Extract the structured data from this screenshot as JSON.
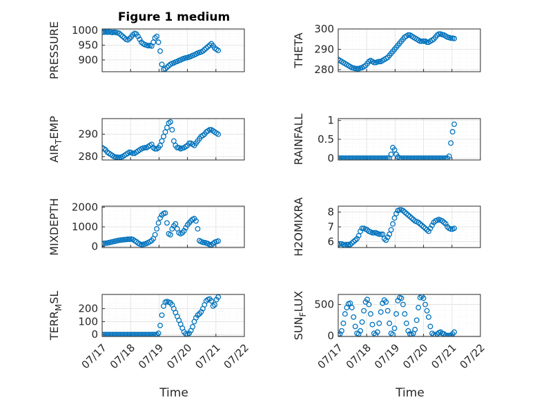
{
  "figure_title": "Figure 1 medium",
  "x_axis": {
    "label": "Time",
    "ticks": [
      "07/17",
      "07/18",
      "07/19",
      "07/20",
      "07/21",
      "07/22"
    ],
    "range": [
      "07/17",
      "07/22"
    ]
  },
  "colors": {
    "marker": "#0072BD",
    "axis": "#262626",
    "grid": "#dfdfdf"
  },
  "chart_data": [
    {
      "type": "scatter",
      "ylabel": "PRESSURE",
      "ylabel_sub": "",
      "ylabel_rest": "",
      "ylim": [
        860,
        1005
      ],
      "yticks": [
        900,
        950,
        1000
      ],
      "show_xticks": false,
      "x": [
        0.0,
        0.06,
        0.12,
        0.18,
        0.24,
        0.3,
        0.36,
        0.42,
        0.48,
        0.54,
        0.6,
        0.66,
        0.72,
        0.78,
        0.84,
        0.9,
        0.96,
        1.02,
        1.08,
        1.14,
        1.2,
        1.26,
        1.32,
        1.38,
        1.44,
        1.5,
        1.56,
        1.62,
        1.68,
        1.74,
        1.8,
        1.86,
        1.92,
        1.98,
        2.04,
        2.1,
        2.16,
        2.22,
        2.28,
        2.34,
        2.4,
        2.46,
        2.52,
        2.58,
        2.64,
        2.7,
        2.76,
        2.82,
        2.88,
        2.94,
        3.0,
        3.06,
        3.12,
        3.18,
        3.24,
        3.3,
        3.36,
        3.42,
        3.48,
        3.54,
        3.6,
        3.66,
        3.72,
        3.78,
        3.84,
        3.9,
        3.96,
        4.02,
        4.08
      ],
      "y": [
        995,
        994,
        995,
        994,
        995,
        994,
        993,
        994,
        993,
        992,
        990,
        985,
        980,
        975,
        970,
        968,
        972,
        978,
        985,
        990,
        988,
        980,
        970,
        960,
        955,
        952,
        950,
        948,
        949,
        947,
        960,
        975,
        980,
        960,
        930,
        885,
        868,
        870,
        875,
        880,
        885,
        888,
        890,
        893,
        895,
        898,
        900,
        903,
        905,
        907,
        908,
        910,
        912,
        915,
        917,
        920,
        923,
        925,
        927,
        930,
        935,
        940,
        945,
        950,
        955,
        948,
        940,
        936,
        932
      ]
    },
    {
      "type": "scatter",
      "ylabel": "THETA",
      "ylabel_sub": "",
      "ylabel_rest": "",
      "ylim": [
        279,
        300
      ],
      "yticks": [
        280,
        290,
        300
      ],
      "show_xticks": false,
      "x": [
        0.0,
        0.06,
        0.12,
        0.18,
        0.24,
        0.3,
        0.36,
        0.42,
        0.48,
        0.54,
        0.6,
        0.66,
        0.72,
        0.78,
        0.84,
        0.9,
        0.96,
        1.02,
        1.08,
        1.14,
        1.2,
        1.26,
        1.32,
        1.38,
        1.44,
        1.5,
        1.56,
        1.62,
        1.68,
        1.74,
        1.8,
        1.86,
        1.92,
        1.98,
        2.04,
        2.1,
        2.16,
        2.22,
        2.28,
        2.34,
        2.4,
        2.46,
        2.52,
        2.58,
        2.64,
        2.7,
        2.76,
        2.82,
        2.88,
        2.94,
        3.0,
        3.06,
        3.12,
        3.18,
        3.24,
        3.3,
        3.36,
        3.42,
        3.48,
        3.54,
        3.6,
        3.66,
        3.72,
        3.78,
        3.84,
        3.9,
        3.96,
        4.02,
        4.08
      ],
      "y": [
        285,
        284.5,
        284,
        283.5,
        283,
        282.5,
        282,
        281.5,
        281,
        280.8,
        280.6,
        280.5,
        280.5,
        280.8,
        281,
        281.5,
        282,
        283,
        284,
        284.5,
        284,
        283.5,
        283.5,
        283.8,
        284,
        284,
        284.5,
        285,
        285.5,
        286,
        287,
        288,
        289,
        290,
        291,
        292,
        293,
        294,
        295,
        296,
        296.5,
        297,
        297,
        296.5,
        296,
        295.5,
        295,
        294.5,
        294,
        294,
        294,
        294,
        293.5,
        293.5,
        294,
        294.5,
        295,
        296,
        297,
        297.5,
        297.5,
        297.2,
        297,
        296.5,
        296,
        295.8,
        295.5,
        295.5,
        295.3
      ]
    },
    {
      "type": "scatter",
      "ylabel": "AIR",
      "ylabel_sub": "T",
      "ylabel_rest": "EMP",
      "ylim": [
        278.5,
        297
      ],
      "yticks": [
        280,
        290
      ],
      "show_xticks": false,
      "x": [
        0.0,
        0.06,
        0.12,
        0.18,
        0.24,
        0.3,
        0.36,
        0.42,
        0.48,
        0.54,
        0.6,
        0.66,
        0.72,
        0.78,
        0.84,
        0.9,
        0.96,
        1.02,
        1.08,
        1.14,
        1.2,
        1.26,
        1.32,
        1.38,
        1.44,
        1.5,
        1.56,
        1.62,
        1.68,
        1.74,
        1.8,
        1.86,
        1.92,
        1.98,
        2.04,
        2.1,
        2.16,
        2.22,
        2.28,
        2.34,
        2.4,
        2.46,
        2.52,
        2.58,
        2.64,
        2.7,
        2.76,
        2.82,
        2.88,
        2.94,
        3.0,
        3.06,
        3.12,
        3.18,
        3.24,
        3.3,
        3.36,
        3.42,
        3.48,
        3.54,
        3.6,
        3.66,
        3.72,
        3.78,
        3.84,
        3.9,
        3.96,
        4.02,
        4.08
      ],
      "y": [
        284,
        283.5,
        283,
        282,
        281.5,
        281,
        280.5,
        280,
        279.8,
        279.7,
        279.6,
        279.8,
        280,
        280.5,
        281,
        281.5,
        282,
        281.8,
        281.5,
        281.5,
        282,
        282.5,
        283,
        283.5,
        283.8,
        284,
        284,
        284.5,
        285,
        285.5,
        284,
        283.5,
        283.5,
        284,
        285,
        287,
        289,
        291,
        293,
        295,
        295.5,
        292,
        287,
        285,
        284,
        284,
        283.5,
        283.8,
        284,
        284.5,
        285,
        286,
        286,
        285.5,
        285,
        286,
        287,
        288,
        289,
        289.5,
        290,
        291,
        291.5,
        292,
        292,
        291.5,
        291,
        290.5,
        290
      ]
    },
    {
      "type": "scatter",
      "ylabel": "RAINFALL",
      "ylabel_sub": "",
      "ylabel_rest": "",
      "ylim": [
        -0.05,
        1.05
      ],
      "yticks": [
        0,
        0.5,
        1
      ],
      "ytick_labels": [
        "0",
        "0.5",
        "1"
      ],
      "show_xticks": false,
      "x": [
        0.0,
        0.06,
        0.12,
        0.18,
        0.24,
        0.3,
        0.36,
        0.42,
        0.48,
        0.54,
        0.6,
        0.66,
        0.72,
        0.78,
        0.84,
        0.9,
        0.96,
        1.02,
        1.08,
        1.14,
        1.2,
        1.26,
        1.32,
        1.38,
        1.44,
        1.5,
        1.56,
        1.62,
        1.68,
        1.74,
        1.8,
        1.86,
        1.92,
        1.98,
        2.04,
        2.1,
        2.16,
        2.22,
        2.28,
        2.34,
        2.4,
        2.46,
        2.52,
        2.58,
        2.64,
        2.7,
        2.76,
        2.82,
        2.88,
        2.94,
        3.0,
        3.06,
        3.12,
        3.18,
        3.24,
        3.3,
        3.36,
        3.42,
        3.48,
        3.54,
        3.6,
        3.66,
        3.72,
        3.78,
        3.84,
        3.9,
        3.96,
        4.02,
        4.08
      ],
      "y": [
        0,
        0,
        0,
        0,
        0,
        0,
        0,
        0,
        0,
        0,
        0,
        0,
        0,
        0,
        0,
        0,
        0,
        0,
        0,
        0,
        0,
        0,
        0,
        0,
        0,
        0,
        0,
        0,
        0,
        0,
        0,
        0.1,
        0.28,
        0.22,
        0.1,
        0.03,
        0,
        0,
        0,
        0,
        0,
        0,
        0,
        0,
        0,
        0,
        0,
        0,
        0,
        0,
        0,
        0,
        0,
        0,
        0,
        0,
        0,
        0,
        0,
        0,
        0,
        0,
        0,
        0,
        0,
        0.05,
        0.4,
        0.7,
        0.9
      ]
    },
    {
      "type": "scatter",
      "ylabel": "MIXDEPTH",
      "ylabel_sub": "",
      "ylabel_rest": "",
      "ylim": [
        -50,
        2050
      ],
      "yticks": [
        0,
        1000,
        2000
      ],
      "show_xticks": false,
      "x": [
        0.0,
        0.06,
        0.12,
        0.18,
        0.24,
        0.3,
        0.36,
        0.42,
        0.48,
        0.54,
        0.6,
        0.66,
        0.72,
        0.78,
        0.84,
        0.9,
        0.96,
        1.02,
        1.08,
        1.14,
        1.2,
        1.26,
        1.32,
        1.38,
        1.44,
        1.5,
        1.56,
        1.62,
        1.68,
        1.74,
        1.8,
        1.86,
        1.92,
        1.98,
        2.04,
        2.1,
        2.16,
        2.22,
        2.28,
        2.34,
        2.4,
        2.46,
        2.52,
        2.58,
        2.64,
        2.7,
        2.76,
        2.82,
        2.88,
        2.94,
        3.0,
        3.06,
        3.12,
        3.18,
        3.24,
        3.3,
        3.36,
        3.42,
        3.48,
        3.54,
        3.6,
        3.66,
        3.72,
        3.78,
        3.84,
        3.9,
        3.96,
        4.02,
        4.08
      ],
      "y": [
        150,
        160,
        170,
        180,
        200,
        220,
        240,
        260,
        280,
        300,
        320,
        330,
        340,
        350,
        360,
        370,
        370,
        380,
        360,
        300,
        250,
        180,
        130,
        100,
        110,
        130,
        160,
        200,
        250,
        300,
        400,
        600,
        900,
        1200,
        1450,
        1600,
        1680,
        1700,
        1200,
        650,
        600,
        900,
        1050,
        1150,
        900,
        700,
        650,
        700,
        800,
        950,
        1100,
        1200,
        1300,
        1380,
        1420,
        1300,
        900,
        300,
        250,
        220,
        200,
        180,
        150,
        100,
        80,
        150,
        220,
        250,
        280
      ]
    },
    {
      "type": "scatter",
      "ylabel": "H2OMIXRA",
      "ylabel_sub": "",
      "ylabel_rest": "",
      "ylim": [
        5.6,
        8.4
      ],
      "yticks": [
        6,
        7,
        8
      ],
      "show_xticks": false,
      "x": [
        0.0,
        0.06,
        0.12,
        0.18,
        0.24,
        0.3,
        0.36,
        0.42,
        0.48,
        0.54,
        0.6,
        0.66,
        0.72,
        0.78,
        0.84,
        0.9,
        0.96,
        1.02,
        1.08,
        1.14,
        1.2,
        1.26,
        1.32,
        1.38,
        1.44,
        1.5,
        1.56,
        1.62,
        1.68,
        1.74,
        1.8,
        1.86,
        1.92,
        1.98,
        2.04,
        2.1,
        2.16,
        2.22,
        2.28,
        2.34,
        2.4,
        2.46,
        2.52,
        2.58,
        2.64,
        2.7,
        2.76,
        2.82,
        2.88,
        2.94,
        3.0,
        3.06,
        3.12,
        3.18,
        3.24,
        3.3,
        3.36,
        3.42,
        3.48,
        3.54,
        3.6,
        3.66,
        3.72,
        3.78,
        3.84,
        3.9,
        3.96,
        4.02,
        4.08
      ],
      "y": [
        5.8,
        5.85,
        5.85,
        5.8,
        5.75,
        5.8,
        5.8,
        5.8,
        5.9,
        6.0,
        6.1,
        6.2,
        6.4,
        6.7,
        6.9,
        6.9,
        6.85,
        6.8,
        6.7,
        6.65,
        6.6,
        6.6,
        6.6,
        6.55,
        6.5,
        6.5,
        6.5,
        6.2,
        6.1,
        6.3,
        6.5,
        6.8,
        7.2,
        7.6,
        7.9,
        8.1,
        8.15,
        8.15,
        8.1,
        8.0,
        7.9,
        7.8,
        7.7,
        7.6,
        7.5,
        7.4,
        7.35,
        7.3,
        7.2,
        7.1,
        7.0,
        6.9,
        6.8,
        6.7,
        6.9,
        7.1,
        7.3,
        7.4,
        7.45,
        7.5,
        7.45,
        7.4,
        7.3,
        7.2,
        7.0,
        6.9,
        6.85,
        6.85,
        6.9
      ]
    },
    {
      "type": "scatter",
      "ylabel": "TERR",
      "ylabel_sub": "M",
      "ylabel_rest": "SL",
      "ylim": [
        -15,
        310
      ],
      "yticks": [
        0,
        100,
        200
      ],
      "show_xticks": true,
      "x": [
        0.0,
        0.06,
        0.12,
        0.18,
        0.24,
        0.3,
        0.36,
        0.42,
        0.48,
        0.54,
        0.6,
        0.66,
        0.72,
        0.78,
        0.84,
        0.9,
        0.96,
        1.02,
        1.08,
        1.14,
        1.2,
        1.26,
        1.32,
        1.38,
        1.44,
        1.5,
        1.56,
        1.62,
        1.68,
        1.74,
        1.8,
        1.86,
        1.92,
        1.98,
        2.04,
        2.1,
        2.16,
        2.22,
        2.28,
        2.34,
        2.4,
        2.46,
        2.52,
        2.58,
        2.64,
        2.7,
        2.76,
        2.82,
        2.88,
        2.94,
        3.0,
        3.06,
        3.12,
        3.18,
        3.24,
        3.3,
        3.36,
        3.42,
        3.48,
        3.54,
        3.6,
        3.66,
        3.72,
        3.78,
        3.84,
        3.9,
        3.96,
        4.02,
        4.08
      ],
      "y": [
        0,
        0,
        0,
        0,
        0,
        0,
        0,
        0,
        0,
        0,
        0,
        0,
        0,
        0,
        0,
        0,
        0,
        0,
        0,
        0,
        0,
        0,
        0,
        0,
        0,
        0,
        0,
        0,
        0,
        0,
        0,
        0,
        0,
        10,
        70,
        150,
        220,
        250,
        255,
        250,
        245,
        230,
        200,
        170,
        140,
        110,
        80,
        50,
        20,
        5,
        0,
        10,
        30,
        60,
        100,
        130,
        150,
        160,
        175,
        200,
        230,
        260,
        270,
        275,
        260,
        220,
        230,
        270,
        290
      ]
    },
    {
      "type": "scatter",
      "ylabel": "SUN",
      "ylabel_sub": "F",
      "ylabel_rest": "LUX",
      "ylim": [
        -10,
        660
      ],
      "yticks": [
        0,
        500
      ],
      "show_xticks": true,
      "x": [
        0.0,
        0.06,
        0.12,
        0.18,
        0.24,
        0.3,
        0.36,
        0.42,
        0.48,
        0.54,
        0.6,
        0.66,
        0.72,
        0.78,
        0.84,
        0.9,
        0.96,
        1.02,
        1.08,
        1.14,
        1.2,
        1.26,
        1.32,
        1.38,
        1.44,
        1.5,
        1.56,
        1.62,
        1.68,
        1.74,
        1.8,
        1.86,
        1.92,
        1.98,
        2.04,
        2.1,
        2.16,
        2.22,
        2.28,
        2.34,
        2.4,
        2.46,
        2.52,
        2.58,
        2.64,
        2.7,
        2.76,
        2.82,
        2.88,
        2.94,
        3.0,
        3.06,
        3.12,
        3.18,
        3.24,
        3.3,
        3.36,
        3.42,
        3.48,
        3.54,
        3.6,
        3.66,
        3.72,
        3.78,
        3.84,
        3.9,
        3.96,
        4.02,
        4.08
      ],
      "y": [
        10,
        30,
        80,
        200,
        350,
        450,
        510,
        520,
        450,
        300,
        150,
        40,
        30,
        80,
        220,
        400,
        540,
        580,
        500,
        350,
        180,
        40,
        20,
        60,
        200,
        380,
        520,
        570,
        540,
        400,
        200,
        40,
        20,
        120,
        350,
        560,
        610,
        600,
        500,
        350,
        200,
        80,
        30,
        20,
        40,
        100,
        250,
        450,
        610,
        630,
        600,
        500,
        400,
        300,
        150,
        40,
        20,
        10,
        30,
        50,
        60,
        40,
        30,
        10,
        5,
        5,
        10,
        30,
        60
      ]
    }
  ]
}
